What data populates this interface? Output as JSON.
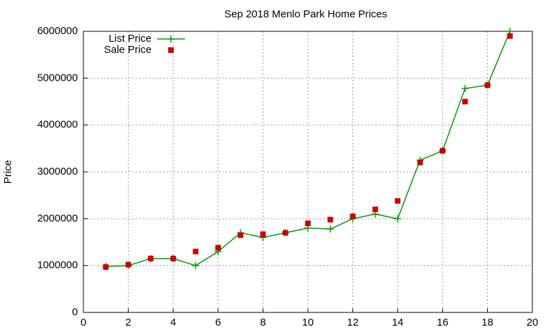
{
  "chart_data": {
    "type": "line",
    "title": "Sep 2018 Menlo Park Home Prices",
    "y_label": "Price",
    "x": [
      1,
      2,
      3,
      4,
      5,
      6,
      7,
      8,
      9,
      10,
      11,
      12,
      13,
      14,
      15,
      16,
      17,
      18,
      19
    ],
    "series": [
      {
        "name": "List Price",
        "color": "#009900",
        "style": "line-points",
        "values": [
          980000,
          1000000,
          1150000,
          1150000,
          1000000,
          1300000,
          1700000,
          1600000,
          1700000,
          1800000,
          1780000,
          2000000,
          2100000,
          2000000,
          3250000,
          3450000,
          4780000,
          4850000,
          6000000
        ]
      },
      {
        "name": "Sale Price",
        "color": "#cc0000",
        "style": "points",
        "values": [
          970000,
          1020000,
          1150000,
          1150000,
          1300000,
          1380000,
          1650000,
          1670000,
          1700000,
          1900000,
          1980000,
          2050000,
          2200000,
          2380000,
          3200000,
          3450000,
          4500000,
          4850000,
          5900000
        ]
      }
    ],
    "xlim": [
      0,
      20
    ],
    "xticks": [
      0,
      2,
      4,
      6,
      8,
      10,
      12,
      14,
      16,
      18,
      20
    ],
    "ylim": [
      0,
      6000000
    ],
    "yticks": [
      0,
      1000000,
      2000000,
      3000000,
      4000000,
      5000000,
      6000000
    ],
    "grid": true,
    "legend": "top-left"
  }
}
